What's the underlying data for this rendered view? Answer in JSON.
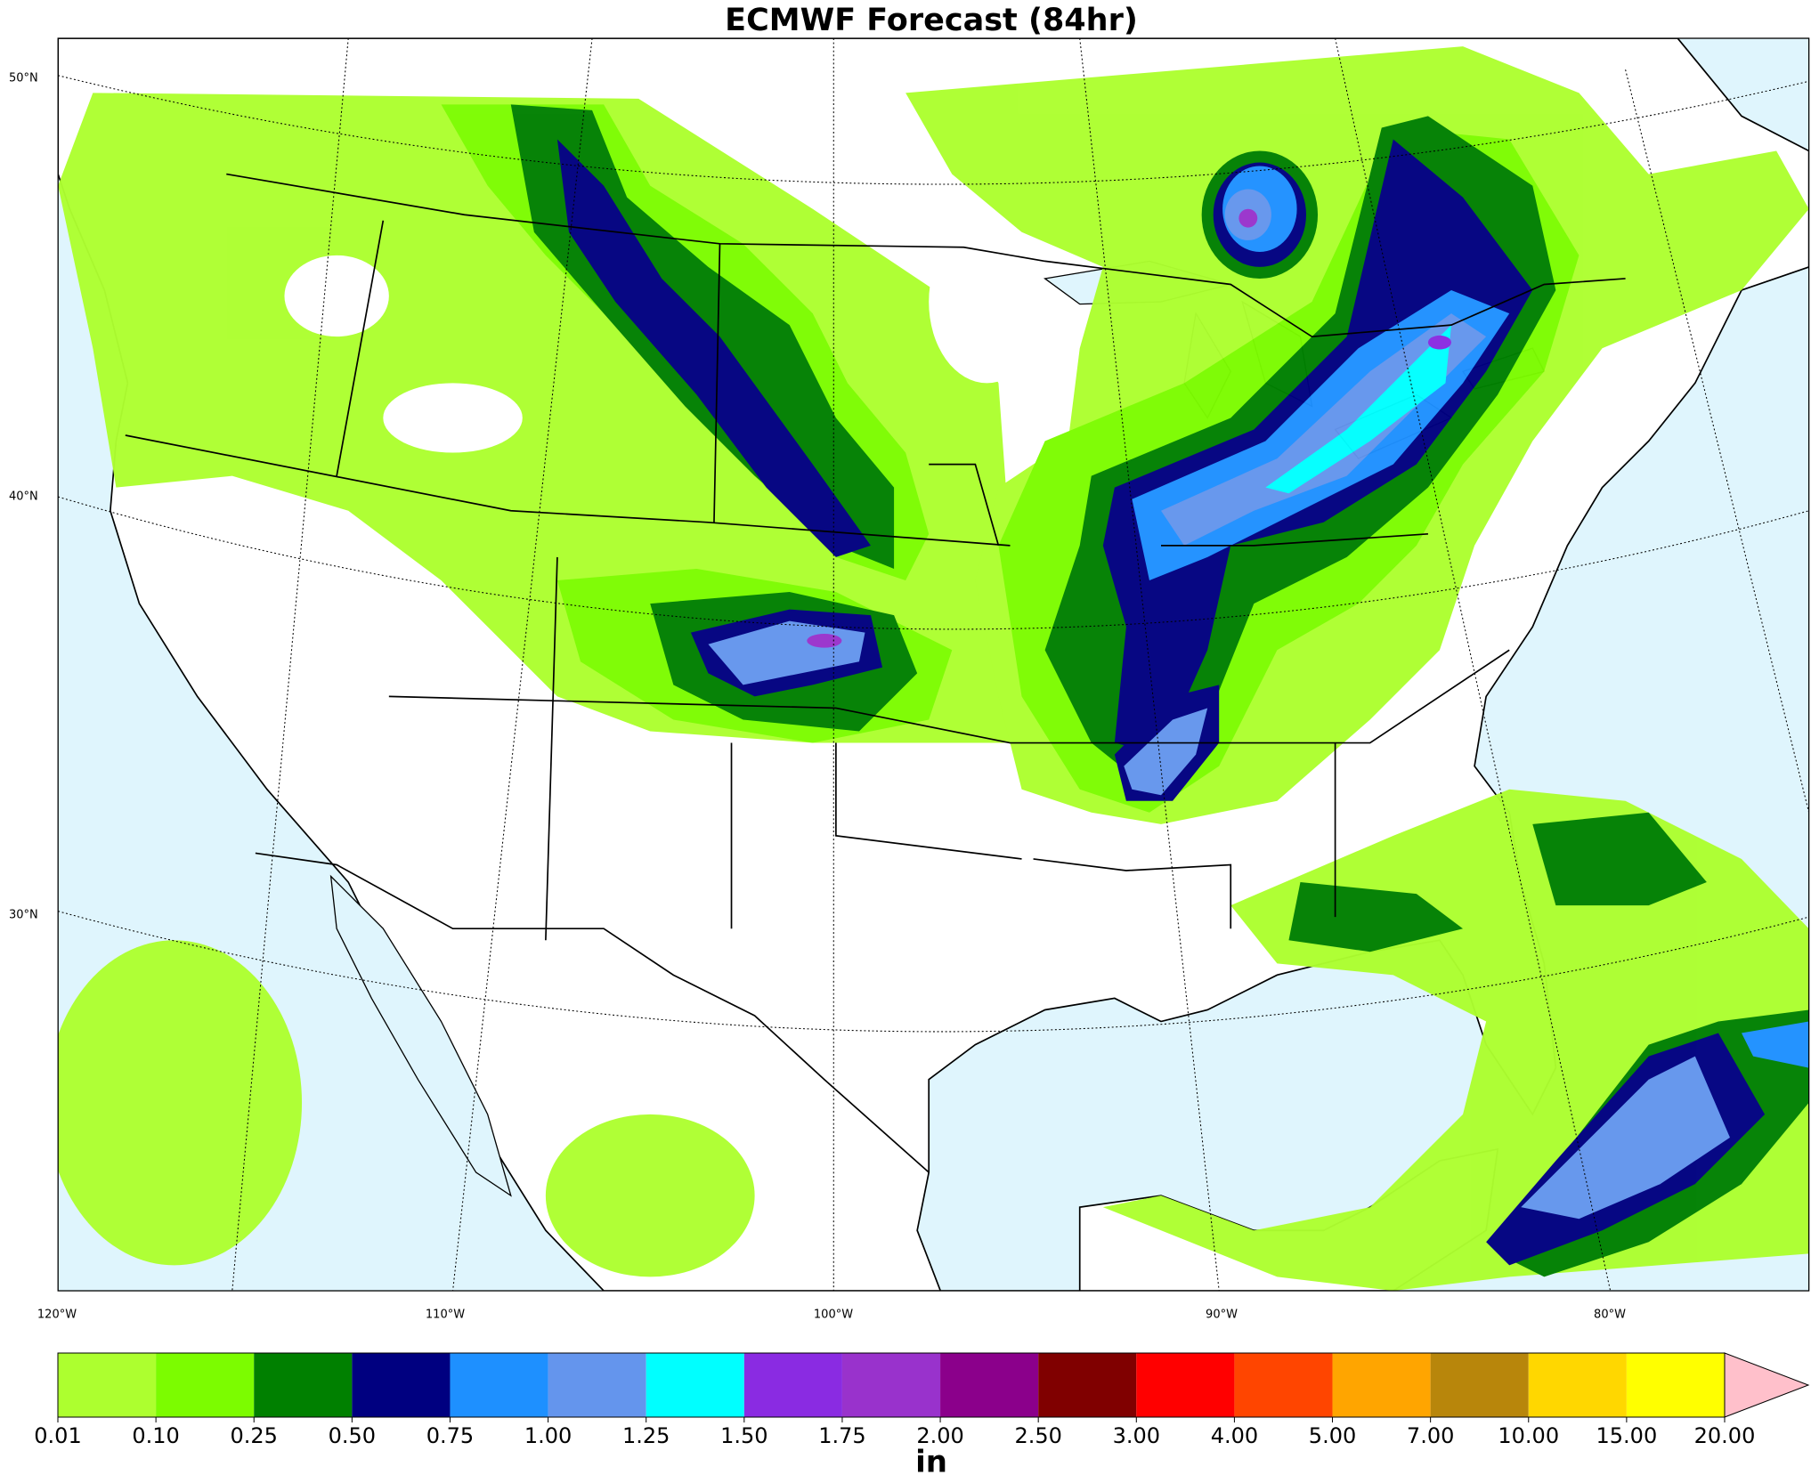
{
  "title": "ECMWF Forecast (84hr)",
  "map": {
    "lat_labels": [
      {
        "value": 50,
        "label": "50°N"
      },
      {
        "value": 40,
        "label": "40°N"
      },
      {
        "value": 30,
        "label": "30°N"
      }
    ],
    "lon_labels": [
      {
        "value": -120,
        "label": "120°W"
      },
      {
        "value": -110,
        "label": "110°W"
      },
      {
        "value": -100,
        "label": "100°W"
      },
      {
        "value": -90,
        "label": "90°W"
      },
      {
        "value": -80,
        "label": "80°W"
      }
    ]
  },
  "colorbar": {
    "levels": [
      {
        "value": 0.01,
        "label": "0.01"
      },
      {
        "value": 0.1,
        "label": "0.10"
      },
      {
        "value": 0.25,
        "label": "0.25"
      },
      {
        "value": 0.5,
        "label": "0.50"
      },
      {
        "value": 0.75,
        "label": "0.75"
      },
      {
        "value": 1,
        "label": "1.00"
      },
      {
        "value": 1.25,
        "label": "1.25"
      },
      {
        "value": 1.5,
        "label": "1.50"
      },
      {
        "value": 1.75,
        "label": "1.75"
      },
      {
        "value": 2,
        "label": "2.00"
      },
      {
        "value": 2.5,
        "label": "2.50"
      },
      {
        "value": 3,
        "label": "3.00"
      },
      {
        "value": 4,
        "label": "4.00"
      },
      {
        "value": 5,
        "label": "5.00"
      },
      {
        "value": 7,
        "label": "7.00"
      },
      {
        "value": 10,
        "label": "10.00"
      },
      {
        "value": 15,
        "label": "15.00"
      },
      {
        "value": 20,
        "label": "20.00"
      }
    ],
    "colors": [
      "#adff2f",
      "#7cfc00",
      "#008000",
      "#000080",
      "#1e90ff",
      "#6495ed",
      "#00ffff",
      "#8a2be2",
      "#9932cc",
      "#8b008b",
      "#800000",
      "#ff0000",
      "#ff4500",
      "#ffa500",
      "#b8860b",
      "#ffd700",
      "#ffff00"
    ],
    "extend_color": "#ffc0cb",
    "label": "in"
  }
}
